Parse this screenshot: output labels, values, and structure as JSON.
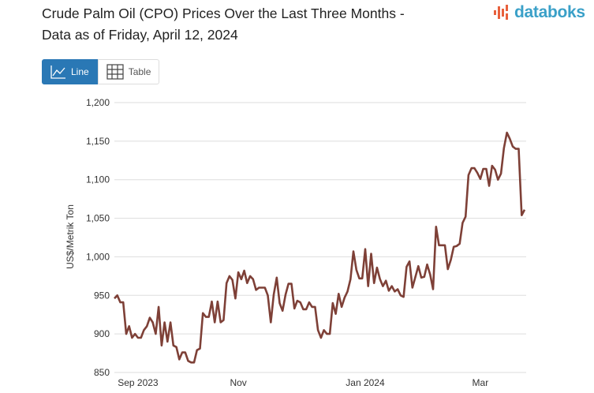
{
  "title_line1": "Crude Palm Oil (CPO) Prices Over the Last Three Months -",
  "title_line2": "Data as of Friday, April 12, 2024",
  "logo": "databoks",
  "buttons": {
    "line": "Line",
    "table": "Table"
  },
  "colors": {
    "line": "#7e4037",
    "accent": "#2a78b5",
    "logo": "#3aa0c8",
    "logo_icon": "#e8603c"
  },
  "chart_data": {
    "type": "line",
    "title": "Crude Palm Oil (CPO) Prices Over the Last Three Months - Data as of Friday, April 12, 2024",
    "ylabel": "US$/Metrik Ton",
    "ylim": [
      850,
      1200
    ],
    "yticks": [
      850,
      900,
      950,
      1000,
      1050,
      1100,
      1150,
      1200
    ],
    "ytick_labels": [
      "850",
      "900",
      "950",
      "1,000",
      "1,050",
      "1,100",
      "1,150",
      "1,200"
    ],
    "grid": true,
    "xticks": [
      {
        "label": "Sep 2023",
        "index": 8
      },
      {
        "label": "Nov",
        "index": 42
      },
      {
        "label": "Jan 2024",
        "index": 85
      },
      {
        "label": "Mar",
        "index": 124
      }
    ],
    "values": [
      946,
      950,
      941,
      941,
      900,
      910,
      895,
      900,
      895,
      895,
      905,
      910,
      921,
      915,
      900,
      935,
      885,
      915,
      890,
      915,
      885,
      883,
      867,
      876,
      876,
      865,
      863,
      863,
      879,
      881,
      927,
      922,
      922,
      942,
      915,
      942,
      915,
      918,
      966,
      975,
      970,
      946,
      980,
      971,
      982,
      966,
      975,
      971,
      957,
      960,
      960,
      960,
      950,
      915,
      951,
      973,
      940,
      930,
      951,
      965,
      965,
      933,
      943,
      941,
      932,
      932,
      941,
      935,
      935,
      905,
      895,
      905,
      900,
      900,
      940,
      926,
      952,
      935,
      947,
      955,
      971,
      1007,
      983,
      972,
      972,
      1010,
      962,
      1004,
      966,
      986,
      971,
      962,
      969,
      956,
      962,
      955,
      958,
      950,
      948,
      987,
      994,
      960,
      974,
      988,
      973,
      974,
      990,
      977,
      958,
      1039,
      1015,
      1015,
      1015,
      984,
      996,
      1013,
      1014,
      1017,
      1044,
      1052,
      1106,
      1115,
      1115,
      1109,
      1101,
      1114,
      1114,
      1092,
      1118,
      1113,
      1100,
      1108,
      1141,
      1161,
      1153,
      1143,
      1140,
      1140,
      1054,
      1061
    ]
  }
}
